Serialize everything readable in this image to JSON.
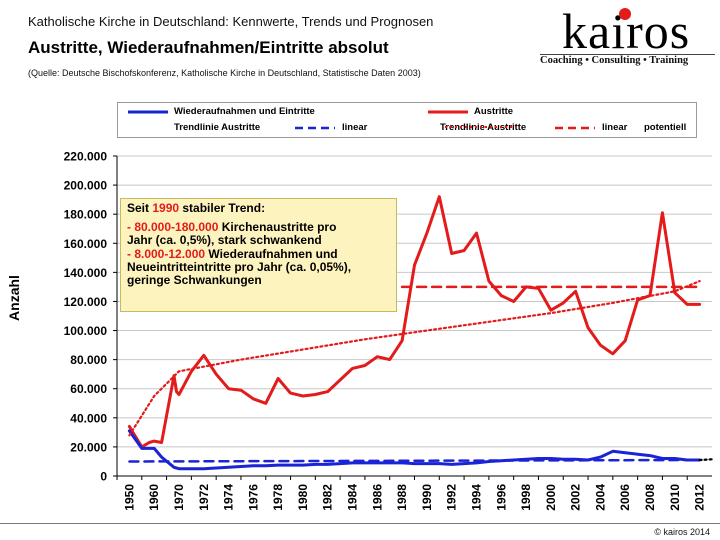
{
  "header": {
    "line1": "Katholische Kirche in Deutschland: Kennwerte, Trends und Prognosen",
    "title": "Austritte, Wiederaufnahmen/Eintritte absolut",
    "source": "(Quelle: Deutsche Bischofskonferenz, Katholische Kirche in Deutschland, Statistische Daten 2003)"
  },
  "logo": {
    "text": "kairos",
    "tagline": "Coaching • Consulting • Training",
    "dot_color": "#e31b1b"
  },
  "legend": {
    "wiederaufnahmen": "Wiederaufnahmen und Eintritte",
    "austritte": "Austritte",
    "trend_blue": "Trendlinie Austritte",
    "linear_blue": "linear",
    "trend_red": "Trendlinie Austritte",
    "linear_red": "linear",
    "potentiell": "potentiell"
  },
  "annotation": {
    "l1a": "Seit ",
    "l1b": "1990",
    "l1c": " stabiler Trend:",
    "l2a": "- 80.000-180.000",
    "l2b": " Kirchenaustritte pro",
    "l3": "Jahr (ca. 0,5%), stark schwankend",
    "l4a": "- 8.000-12.000",
    "l4b": " Wiederaufnahmen und",
    "l5": "Neueintritteintritte pro Jahr (ca. 0,05%),",
    "l6": "geringe Schwankungen"
  },
  "footer": {
    "copyright": "© kairos 2014"
  },
  "colors": {
    "red": "#e31b1b",
    "blue": "#1b23d6",
    "dark": "#000000"
  },
  "chart_data": {
    "type": "line",
    "title": "Austritte, Wiederaufnahmen/Eintritte absolut",
    "ylabel": "Anzahl",
    "xlabel": "",
    "xlim": [
      1950,
      2012
    ],
    "ylim": [
      0,
      220000
    ],
    "y_ticks": [
      "0",
      "20.000",
      "40.000",
      "60.000",
      "80.000",
      "100.000",
      "120.000",
      "140.000",
      "160.000",
      "180.000",
      "200.000",
      "220.000"
    ],
    "y_tick_values": [
      0,
      20000,
      40000,
      60000,
      80000,
      100000,
      120000,
      140000,
      160000,
      180000,
      200000,
      220000
    ],
    "x_ticks": [
      "1950",
      "1960",
      "1970",
      "1972",
      "1974",
      "1976",
      "1978",
      "1980",
      "1982",
      "1984",
      "1986",
      "1988",
      "1990",
      "1992",
      "1994",
      "1996",
      "1998",
      "2000",
      "2002",
      "2004",
      "2006",
      "2008",
      "2010",
      "2012"
    ],
    "grid": true,
    "series": [
      {
        "name": "Austritte",
        "style": "solid",
        "color": "#e31b1b",
        "x": [
          1950,
          1955,
          1958,
          1960,
          1963,
          1968,
          1969,
          1970,
          1971,
          1972,
          1973,
          1974,
          1975,
          1976,
          1977,
          1978,
          1979,
          1980,
          1981,
          1982,
          1983,
          1984,
          1985,
          1986,
          1987,
          1988,
          1989,
          1990,
          1991,
          1992,
          1993,
          1994,
          1995,
          1996,
          1997,
          1998,
          1999,
          2000,
          2001,
          2002,
          2003,
          2004,
          2005,
          2006,
          2007,
          2008,
          2009,
          2010,
          2011,
          2012
        ],
        "y": [
          34000,
          20000,
          23000,
          24000,
          23000,
          69000,
          58000,
          56000,
          72000,
          83000,
          70000,
          60000,
          59000,
          53000,
          50000,
          67000,
          57000,
          55000,
          56000,
          58000,
          66000,
          74000,
          76000,
          82000,
          80000,
          93000,
          145000,
          167000,
          192000,
          153000,
          155000,
          167000,
          134000,
          124000,
          120000,
          130000,
          129000,
          114000,
          119000,
          127000,
          102000,
          90000,
          84000,
          93000,
          121000,
          124000,
          181000,
          126000,
          118000,
          118000
        ]
      },
      {
        "name": "Wiederaufnahmen und Eintritte",
        "style": "solid",
        "color": "#1b23d6",
        "x": [
          1950,
          1955,
          1960,
          1963,
          1968,
          1969,
          1970,
          1971,
          1972,
          1973,
          1974,
          1975,
          1976,
          1977,
          1978,
          1979,
          1980,
          1981,
          1982,
          1983,
          1984,
          1985,
          1986,
          1987,
          1988,
          1989,
          1990,
          1991,
          1992,
          1993,
          1994,
          1995,
          1996,
          1997,
          1998,
          1999,
          2000,
          2001,
          2002,
          2003,
          2004,
          2005,
          2006,
          2007,
          2008,
          2009,
          2010,
          2011,
          2012
        ],
        "y": [
          31000,
          19000,
          19000,
          13000,
          6000,
          5500,
          5000,
          5000,
          5000,
          5500,
          6000,
          6500,
          7000,
          7000,
          7500,
          7500,
          7500,
          8000,
          8000,
          8500,
          9000,
          9000,
          9000,
          9000,
          9000,
          8500,
          8500,
          8500,
          8000,
          8500,
          9000,
          10000,
          10500,
          11000,
          11500,
          12000,
          12000,
          11500,
          11500,
          11000,
          13000,
          17000,
          16000,
          15000,
          14000,
          12000,
          12000,
          11000,
          11000
        ]
      },
      {
        "name": "Trendlinie Austritte linear",
        "style": "dashed",
        "color": "#e31b1b",
        "x": [
          1988,
          2012
        ],
        "y": [
          130000,
          130000
        ]
      },
      {
        "name": "Trendlinie Austritte linear",
        "style": "dashed",
        "color": "#1b23d6",
        "x": [
          1950,
          2012
        ],
        "y": [
          10000,
          11000
        ]
      },
      {
        "name": "potentiell",
        "style": "dotted",
        "color": "#e31b1b",
        "x": [
          1950,
          1960,
          1970,
          1975,
          1980,
          1985,
          1990,
          1995,
          2000,
          2005,
          2010,
          2012
        ],
        "y": [
          28000,
          55000,
          72000,
          80000,
          87000,
          94000,
          100000,
          106000,
          112000,
          119000,
          127000,
          134000
        ]
      },
      {
        "name": "extension",
        "style": "dotted",
        "color": "#000000",
        "x": [
          2012,
          2013
        ],
        "y": [
          11000,
          11500
        ]
      }
    ]
  }
}
